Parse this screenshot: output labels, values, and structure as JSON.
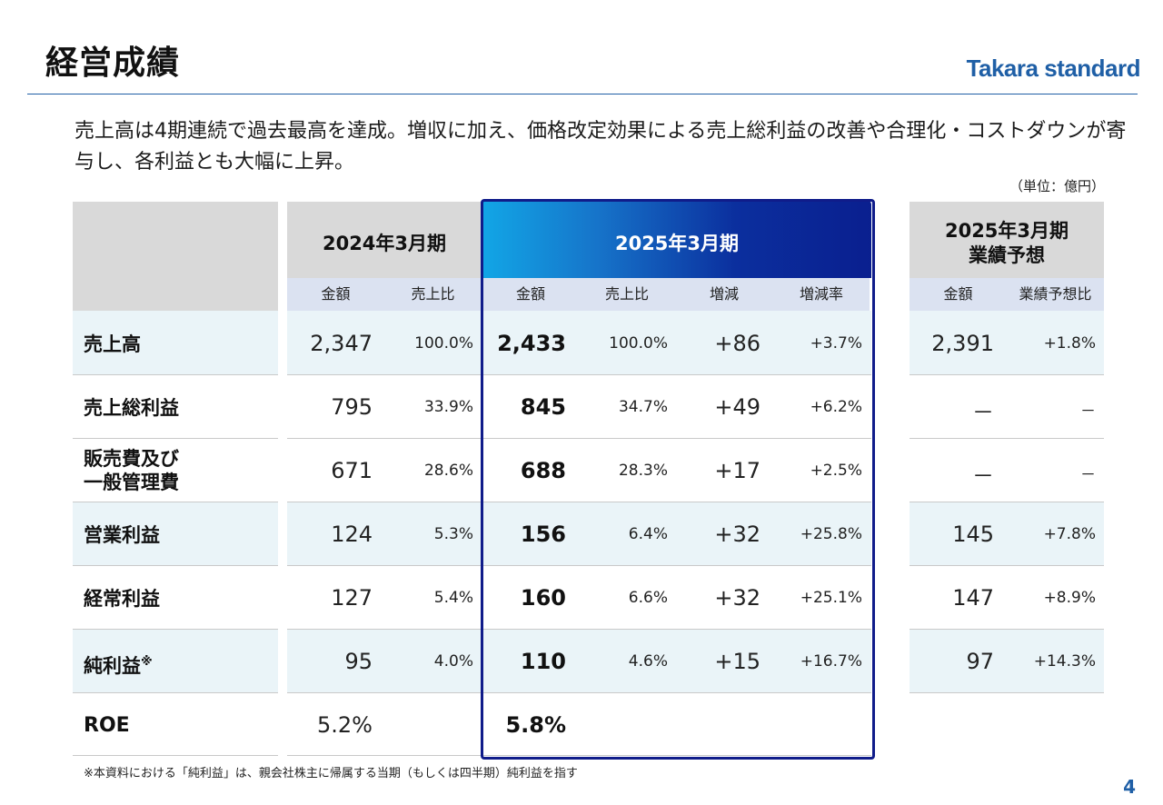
{
  "header": {
    "title": "経営成績",
    "brand": "Takara standard",
    "brand_color": "#1f5fa6"
  },
  "summary": {
    "text": "売上高は4期連続で過去最高を達成。増収に加え、価格改定効果による売上総利益の改善や合理化・コストダウンが寄与し、各利益とも大幅に上昇。",
    "unit": "（単位：億円）"
  },
  "table": {
    "groups": {
      "fy2024": "2024年3月期",
      "fy2025": "2025年3月期",
      "forecast_line1": "2025年3月期",
      "forecast_line2": "業績予想"
    },
    "subheaders": {
      "fy2024": [
        "金額",
        "売上比"
      ],
      "fy2025": [
        "金額",
        "売上比",
        "増減",
        "増減率"
      ],
      "forecast": [
        "金額",
        "業績予想比"
      ]
    },
    "rows": [
      {
        "label": "売上高",
        "sup": "",
        "v24": "2,347",
        "r24": "100.0%",
        "v25": "2,433",
        "r25": "100.0%",
        "chg": "+86",
        "chg_rate": "+3.7%",
        "fc": "2,391",
        "fc_ratio": "+1.8%"
      },
      {
        "label": "売上総利益",
        "sup": "",
        "v24": "795",
        "r24": "33.9%",
        "v25": "845",
        "r25": "34.7%",
        "chg": "+49",
        "chg_rate": "+6.2%",
        "fc": "－",
        "fc_ratio": "－"
      },
      {
        "label": "販売費及び\n一般管理費",
        "sup": "",
        "v24": "671",
        "r24": "28.6%",
        "v25": "688",
        "r25": "28.3%",
        "chg": "+17",
        "chg_rate": "+2.5%",
        "fc": "－",
        "fc_ratio": "－"
      },
      {
        "label": "営業利益",
        "sup": "",
        "v24": "124",
        "r24": "5.3%",
        "v25": "156",
        "r25": "6.4%",
        "chg": "+32",
        "chg_rate": "+25.8%",
        "fc": "145",
        "fc_ratio": "+7.8%"
      },
      {
        "label": "経常利益",
        "sup": "",
        "v24": "127",
        "r24": "5.4%",
        "v25": "160",
        "r25": "6.6%",
        "chg": "+32",
        "chg_rate": "+25.1%",
        "fc": "147",
        "fc_ratio": "+8.9%"
      },
      {
        "label": "純利益",
        "sup": "※",
        "v24": "95",
        "r24": "4.0%",
        "v25": "110",
        "r25": "4.6%",
        "chg": "+15",
        "chg_rate": "+16.7%",
        "fc": "97",
        "fc_ratio": "+14.3%"
      },
      {
        "label": "ROE",
        "sup": "",
        "v24": "5.2%",
        "r24": "",
        "v25": "5.8%",
        "r25": "",
        "chg": "",
        "chg_rate": "",
        "fc": "",
        "fc_ratio": ""
      }
    ],
    "highlight_colors": {
      "frame": "#101c8a",
      "band_light": "#e8f4f8"
    }
  },
  "footer": {
    "footnote": "※本資料における「純利益」は、親会社株主に帰属する当期（もしくは四半期）純利益を指す",
    "page_number": "4"
  }
}
